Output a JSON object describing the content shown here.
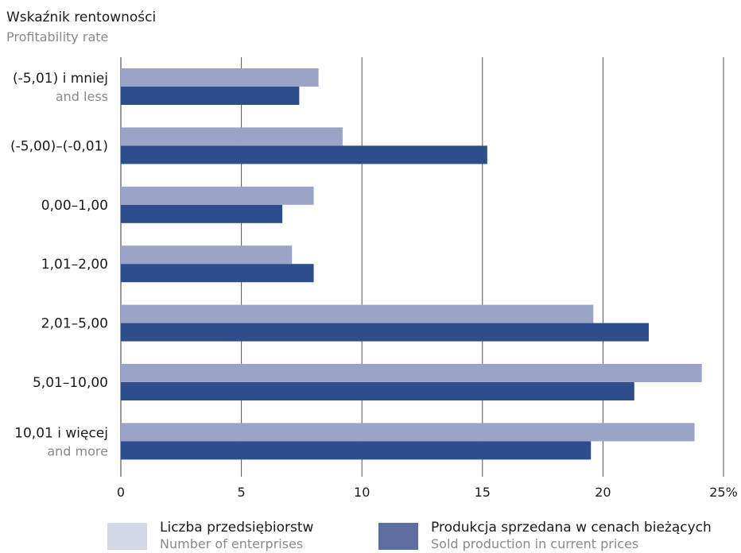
{
  "chart_data": {
    "type": "bar",
    "orientation": "horizontal",
    "title": "Wskaźnik rentowności",
    "subtitle": "Profitability rate",
    "categories": [
      {
        "main": "(-5,01) i mniej",
        "sub": "and less"
      },
      {
        "main": "(-5,00)–(-0,01)",
        "sub": ""
      },
      {
        "main": "0,00–1,00",
        "sub": ""
      },
      {
        "main": "1,01–2,00",
        "sub": ""
      },
      {
        "main": "2,01–5,00",
        "sub": ""
      },
      {
        "main": "5,01–10,00",
        "sub": ""
      },
      {
        "main": "10,01 i więcej",
        "sub": "and more"
      }
    ],
    "series": [
      {
        "name": "Liczba przedsiębiorstw",
        "name_en": "Number of enterprises",
        "color": "#9ba4c6",
        "legend_color": "#d3d7e6",
        "values": [
          8.2,
          9.2,
          8.0,
          7.1,
          19.6,
          24.1,
          23.8
        ]
      },
      {
        "name": "Produkcja sprzedana w cenach bieżących",
        "name_en": "Sold production in current prices",
        "color": "#2f4d8c",
        "legend_color": "#5d6f9f",
        "values": [
          7.4,
          15.2,
          6.7,
          8.0,
          21.9,
          21.3,
          19.5
        ]
      }
    ],
    "xlim": [
      0,
      25
    ],
    "xticks": [
      "0",
      "5",
      "10",
      "15",
      "20",
      "25%"
    ],
    "grid": true,
    "legend_position": "bottom"
  }
}
